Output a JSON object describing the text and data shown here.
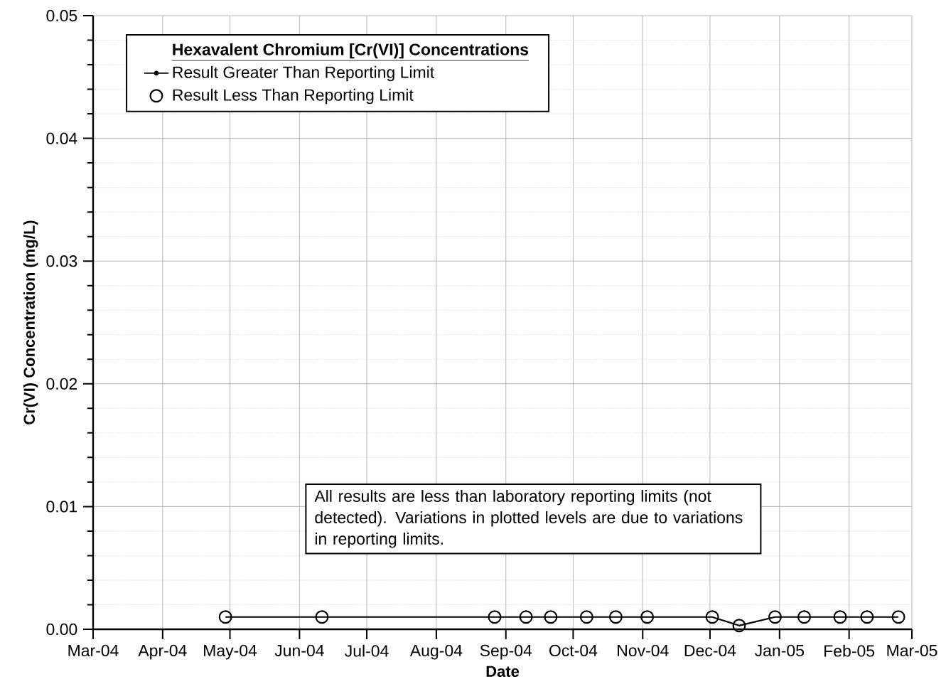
{
  "chart_data": {
    "type": "line",
    "xlabel": "Date",
    "ylabel": "Cr(VI) Concentration (mg/L)",
    "legend_title": "Hexavalent Chromium [Cr(VI)] Concentrations",
    "legend": "top left",
    "grid": true,
    "x": [
      "2004-04-29",
      "2004-06-11",
      "2004-08-27",
      "2004-09-10",
      "2004-09-21",
      "2004-10-07",
      "2004-10-20",
      "2004-11-03",
      "2004-12-02",
      "2004-12-14",
      "2004-12-30",
      "2005-01-12",
      "2005-01-28",
      "2005-02-09",
      "2005-02-23"
    ],
    "series": [
      {
        "name": "Result Greater Than Reporting Limit",
        "color": "#000000",
        "marker": "none",
        "values": [
          0.001,
          0.001,
          0.001,
          0.001,
          0.001,
          0.001,
          0.001,
          0.001,
          0.001,
          0.0003,
          0.001,
          0.001,
          0.001,
          0.001,
          0.001
        ]
      },
      {
        "name": "Result Less Than Reporting Limit",
        "type": "scatter",
        "color": "#000000",
        "marker": "circle",
        "values": [
          0.001,
          0.001,
          0.001,
          0.001,
          0.001,
          0.001,
          0.001,
          0.001,
          0.001,
          0.0003,
          0.001,
          0.001,
          0.001,
          0.001,
          0.001
        ]
      }
    ],
    "xlim": [
      "2004-03",
      "2005-03"
    ],
    "xticks": [
      {
        "value": "2004-03",
        "label": "Mar-04"
      },
      {
        "value": "2004-04",
        "label": "Apr-04"
      },
      {
        "value": "2004-05",
        "label": "May-04"
      },
      {
        "value": "2004-06",
        "label": "Jun-04"
      },
      {
        "value": "2004-07",
        "label": "Jul-04"
      },
      {
        "value": "2004-08",
        "label": "Aug-04"
      },
      {
        "value": "2004-09",
        "label": "Sep-04"
      },
      {
        "value": "2004-10",
        "label": "Oct-04"
      },
      {
        "value": "2004-11",
        "label": "Nov-04"
      },
      {
        "value": "2004-12",
        "label": "Dec-04"
      },
      {
        "value": "2005-01",
        "label": "Jan-05"
      },
      {
        "value": "2005-02",
        "label": "Feb-05"
      },
      {
        "value": "2005-03",
        "label": "Mar-05"
      }
    ],
    "ylim": [
      0,
      0.05
    ],
    "yticks": [
      {
        "value": 0,
        "label": "0.00"
      },
      {
        "value": 0.01,
        "label": "0.01"
      },
      {
        "value": 0.02,
        "label": "0.02"
      },
      {
        "value": 0.03,
        "label": "0.03"
      },
      {
        "value": 0.04,
        "label": "0.04"
      },
      {
        "value": 0.05,
        "label": "0.05"
      }
    ],
    "annotations": [
      "All results are less than laboratory reporting limits (not detected).  Variations in plotted levels are due to variations in reporting limits."
    ]
  }
}
